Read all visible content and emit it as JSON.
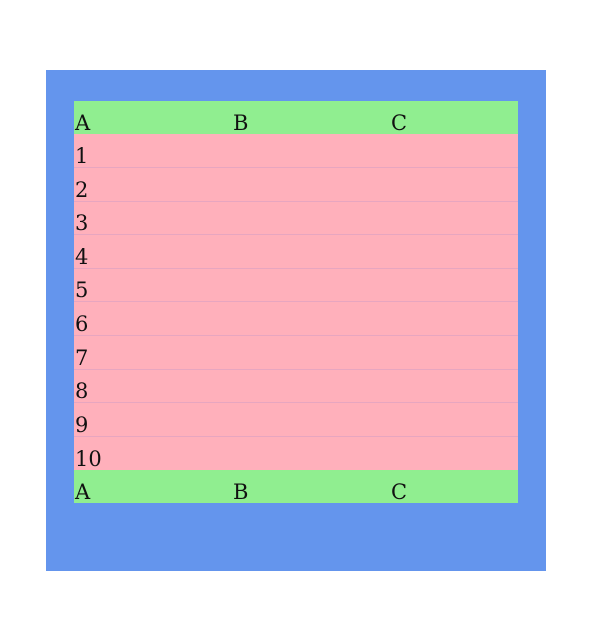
{
  "header": {
    "cells": [
      "A",
      "B",
      "C"
    ]
  },
  "rows": [
    {
      "a": "1",
      "b": "",
      "c": ""
    },
    {
      "a": "2",
      "b": "",
      "c": ""
    },
    {
      "a": "3",
      "b": "",
      "c": ""
    },
    {
      "a": "4",
      "b": "",
      "c": ""
    },
    {
      "a": "5",
      "b": "",
      "c": ""
    },
    {
      "a": "6",
      "b": "",
      "c": ""
    },
    {
      "a": "7",
      "b": "",
      "c": ""
    },
    {
      "a": "8",
      "b": "",
      "c": ""
    },
    {
      "a": "9",
      "b": "",
      "c": ""
    },
    {
      "a": "10",
      "b": "",
      "c": ""
    }
  ],
  "footer": {
    "cells": [
      "A",
      "B",
      "C"
    ]
  },
  "colors": {
    "page_background": "#ffffff",
    "container_background": "#6495ed",
    "header_footer_background": "#90ee90",
    "body_row_background": "#ffb0bb"
  }
}
